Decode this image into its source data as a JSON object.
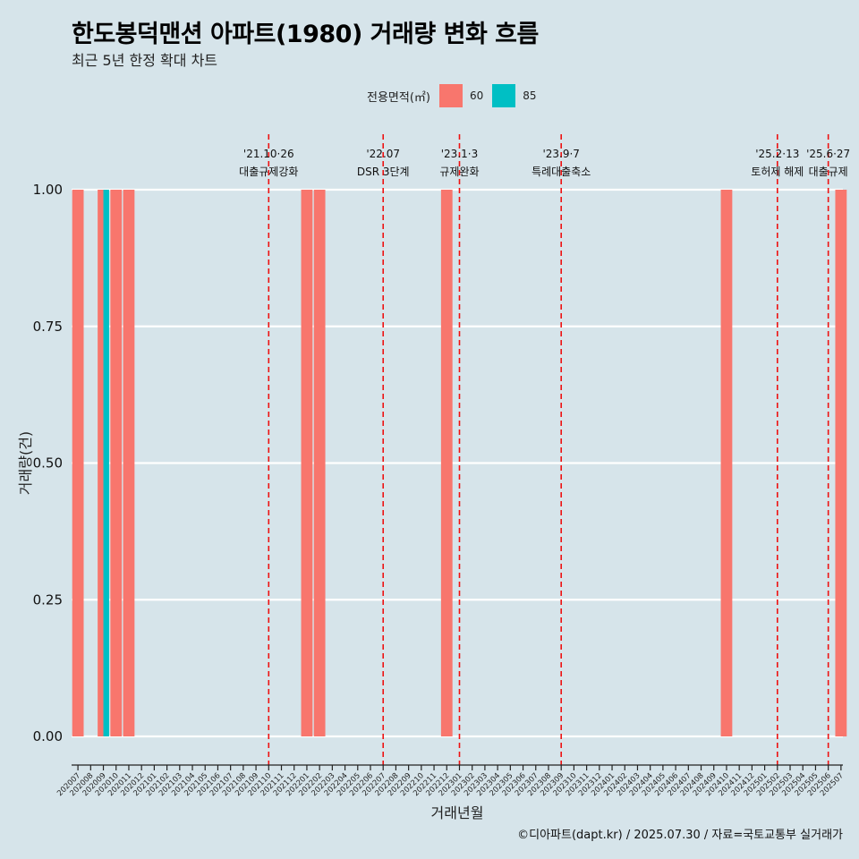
{
  "title": "한도봉덕맨션 아파트(1980) 거래량 변화 흐름",
  "subtitle": "최근 5년 한정 확대 차트",
  "caption": "©디아파트(dapt.kr) / 2025.07.30 / 자료=국토교통부 실거래가",
  "legend": {
    "title": "전용면적(㎡)",
    "items": [
      {
        "label": "60",
        "color": "#f8766d"
      },
      {
        "label": "85",
        "color": "#00bfc4"
      }
    ]
  },
  "chart_data": {
    "type": "bar",
    "xlabel": "거래년월",
    "ylabel": "거래량(건)",
    "ylim": [
      0,
      1
    ],
    "yticks": [
      "0.00",
      "0.25",
      "0.50",
      "0.75",
      "1.00"
    ],
    "categories": [
      "202007",
      "202008",
      "202009",
      "202010",
      "202011",
      "202012",
      "202101",
      "202102",
      "202103",
      "202104",
      "202105",
      "202106",
      "202107",
      "202108",
      "202109",
      "202110",
      "202111",
      "202112",
      "202201",
      "202202",
      "202203",
      "202204",
      "202205",
      "202206",
      "202207",
      "202208",
      "202209",
      "202210",
      "202211",
      "202212",
      "202301",
      "202302",
      "202303",
      "202304",
      "202305",
      "202306",
      "202307",
      "202308",
      "202309",
      "202310",
      "202311",
      "202312",
      "202401",
      "202402",
      "202403",
      "202404",
      "202405",
      "202406",
      "202407",
      "202408",
      "202409",
      "202410",
      "202411",
      "202412",
      "202501",
      "202502",
      "202503",
      "202504",
      "202505",
      "202506",
      "202507"
    ],
    "series": [
      {
        "name": "60",
        "color": "#f8766d",
        "values": [
          1,
          0,
          1,
          1,
          1,
          0,
          0,
          0,
          0,
          0,
          0,
          0,
          0,
          0,
          0,
          0,
          0,
          0,
          1,
          1,
          0,
          0,
          0,
          0,
          0,
          0,
          0,
          0,
          0,
          1,
          0,
          0,
          0,
          0,
          0,
          0,
          0,
          0,
          0,
          0,
          0,
          0,
          0,
          0,
          0,
          0,
          0,
          0,
          0,
          0,
          0,
          1,
          0,
          0,
          0,
          0,
          0,
          0,
          0,
          0,
          1
        ]
      },
      {
        "name": "85",
        "color": "#00bfc4",
        "values": [
          0,
          0,
          1,
          0,
          0,
          0,
          0,
          0,
          0,
          0,
          0,
          0,
          0,
          0,
          0,
          0,
          0,
          0,
          0,
          0,
          0,
          0,
          0,
          0,
          0,
          0,
          0,
          0,
          0,
          0,
          0,
          0,
          0,
          0,
          0,
          0,
          0,
          0,
          0,
          0,
          0,
          0,
          0,
          0,
          0,
          0,
          0,
          0,
          0,
          0,
          0,
          0,
          0,
          0,
          0,
          0,
          0,
          0,
          0,
          0,
          0
        ]
      }
    ],
    "annotations": [
      {
        "x": "202110",
        "date": "'21.10·26",
        "label": "대출규제강화"
      },
      {
        "x": "202207",
        "date": "'22.07",
        "label": "DSR 3단계"
      },
      {
        "x": "202301",
        "date": "'23.1·3",
        "label": "규제완화"
      },
      {
        "x": "202309",
        "date": "'23.9·7",
        "label": "특례대출축소"
      },
      {
        "x": "202502",
        "date": "'25.2·13",
        "label": "토허제 해제"
      },
      {
        "x": "202506",
        "date": "'25.6·27",
        "label": "대출규제"
      }
    ]
  }
}
